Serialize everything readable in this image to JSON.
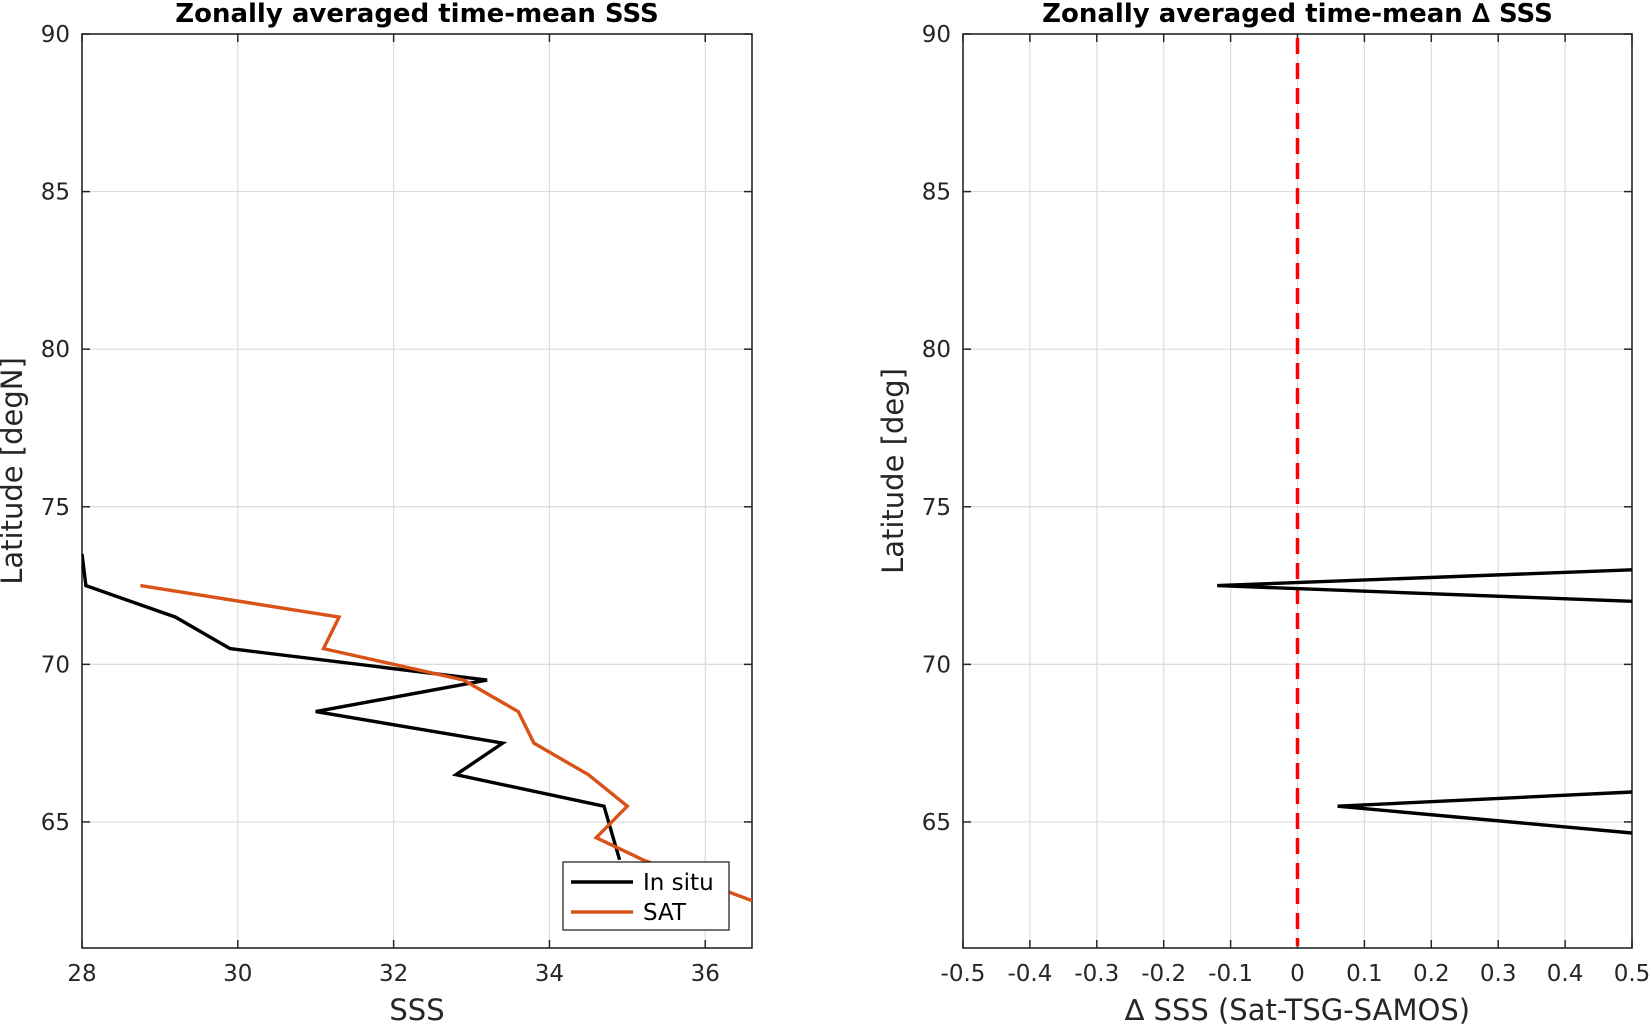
{
  "chart_data": [
    {
      "type": "line",
      "title": "Zonally averaged time-mean SSS",
      "xlabel": "SSS",
      "ylabel": "Latitude [degN]",
      "xlim": [
        28,
        36.6
      ],
      "ylim": [
        61,
        90
      ],
      "xticks": [
        28,
        30,
        32,
        34,
        36
      ],
      "yticks": [
        65,
        70,
        75,
        80,
        85,
        90
      ],
      "grid": true,
      "legend": {
        "location": "bottom-right",
        "entries": [
          "In situ",
          "SAT"
        ]
      },
      "series": [
        {
          "name": "In situ",
          "color": "#000000",
          "x": [
            28.0,
            28.05,
            29.2,
            29.9,
            33.2,
            31.0,
            33.4,
            32.8,
            34.7,
            34.9
          ],
          "y": [
            73.5,
            72.5,
            71.5,
            70.5,
            69.5,
            68.5,
            67.5,
            66.5,
            65.5,
            63.8
          ]
        },
        {
          "name": "SAT",
          "color": "#D95319",
          "x": [
            28.75,
            31.3,
            31.1,
            32.9,
            33.6,
            33.8,
            34.5,
            35.0,
            34.6,
            35.2,
            36.6
          ],
          "y": [
            72.5,
            71.5,
            70.5,
            69.5,
            68.5,
            67.5,
            66.5,
            65.5,
            64.5,
            63.8,
            62.5
          ]
        }
      ]
    },
    {
      "type": "line",
      "title": "Zonally averaged time-mean ∆ SSS",
      "xlabel": "∆ SSS (Sat-TSG-SAMOS)",
      "ylabel": "Latitude [deg]",
      "xlim": [
        -0.5,
        0.5
      ],
      "ylim": [
        61,
        90
      ],
      "xticks": [
        -0.5,
        -0.4,
        -0.3,
        -0.2,
        -0.1,
        0,
        0.1,
        0.2,
        0.3,
        0.4,
        0.5
      ],
      "yticks": [
        65,
        70,
        75,
        80,
        85,
        90
      ],
      "grid": true,
      "reference_line": {
        "x": 0,
        "color": "#FF0000",
        "style": "dashed"
      },
      "series": [
        {
          "color": "#000000",
          "x": [
            0.5,
            -0.12,
            0.5
          ],
          "y": [
            73.0,
            72.5,
            72.0
          ]
        },
        {
          "color": "#000000",
          "x": [
            0.5,
            0.06,
            0.5
          ],
          "y": [
            65.95,
            65.5,
            64.65
          ]
        }
      ]
    }
  ]
}
